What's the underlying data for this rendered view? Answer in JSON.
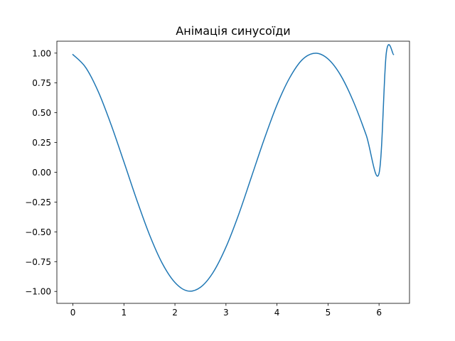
{
  "chart_data": {
    "type": "line",
    "title": "Анімація синусоїди",
    "xlabel": "",
    "ylabel": "",
    "xlim": [
      -0.314,
      6.597
    ],
    "ylim": [
      -1.1,
      1.1
    ],
    "xticks": [
      0,
      1,
      2,
      3,
      4,
      5,
      6
    ],
    "xtick_labels": [
      "0",
      "1",
      "2",
      "3",
      "4",
      "5",
      "6"
    ],
    "yticks": [
      -1.0,
      -0.75,
      -0.5,
      -0.25,
      0.0,
      0.25,
      0.5,
      0.75,
      1.0
    ],
    "ytick_labels": [
      "−1.00",
      "−0.75",
      "−0.50",
      "−0.25",
      "0.00",
      "0.25",
      "0.50",
      "0.75",
      "1.00"
    ],
    "grid": false,
    "legend": "none",
    "series": [
      {
        "color": "#1f77b4",
        "x": [
          0.0,
          0.25,
          0.5,
          0.75,
          1.0,
          1.25,
          1.5,
          1.75,
          2.0,
          2.25,
          2.5,
          2.75,
          3.0,
          3.25,
          3.5,
          3.75,
          4.0,
          4.25,
          4.5,
          4.75,
          5.0,
          5.25,
          5.5,
          5.75,
          6.0,
          6.142,
          6.283
        ],
        "y": [
          0.988,
          0.88,
          0.674,
          0.398,
          0.087,
          -0.23,
          -0.523,
          -0.763,
          -0.925,
          -0.996,
          -0.965,
          -0.839,
          -0.628,
          -0.353,
          -0.038,
          0.278,
          0.566,
          0.794,
          0.947,
          0.999,
          0.951,
          0.812,
          0.591,
          0.31,
          -0.009,
          1.0,
          0.988
        ]
      }
    ]
  }
}
